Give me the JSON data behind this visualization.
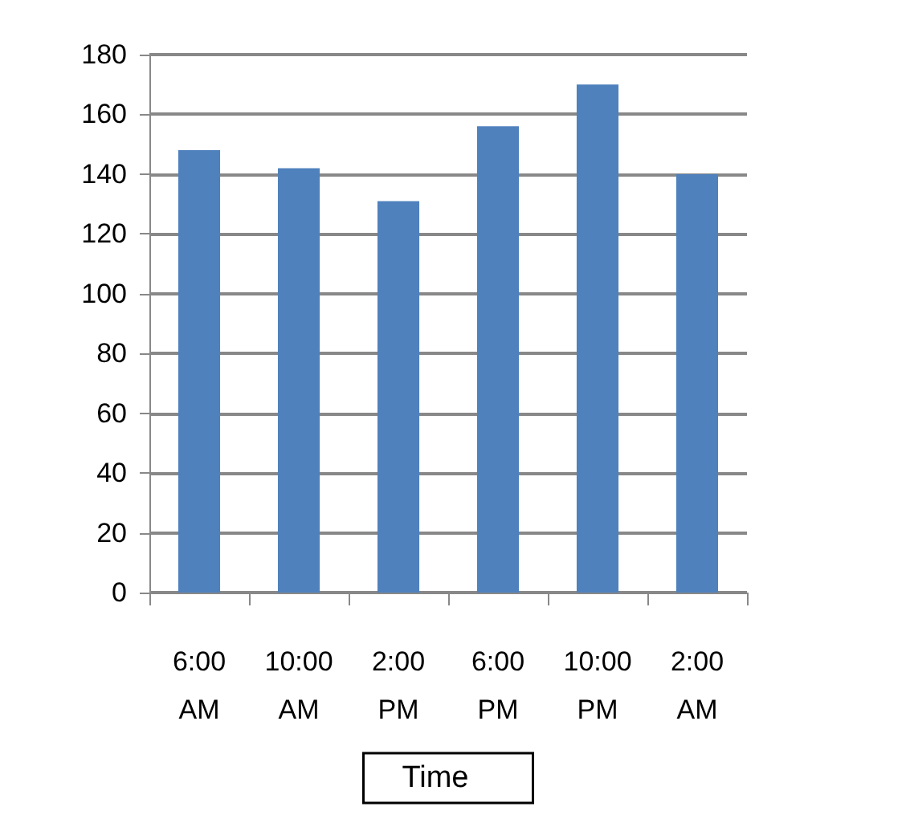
{
  "chart_data": {
    "type": "bar",
    "xlabel": "Time",
    "categories": [
      "6:00\nAM",
      "10:00\nAM",
      "2:00\nPM",
      "6:00\nPM",
      "10:00\nPM",
      "2:00\nAM"
    ],
    "values": [
      148,
      142,
      131,
      156,
      170,
      140
    ],
    "color": "#4f81bd",
    "ylim": [
      0,
      180
    ],
    "yticks": [
      0,
      20,
      40,
      60,
      80,
      100,
      120,
      140,
      160,
      180
    ],
    "grid": "y"
  }
}
